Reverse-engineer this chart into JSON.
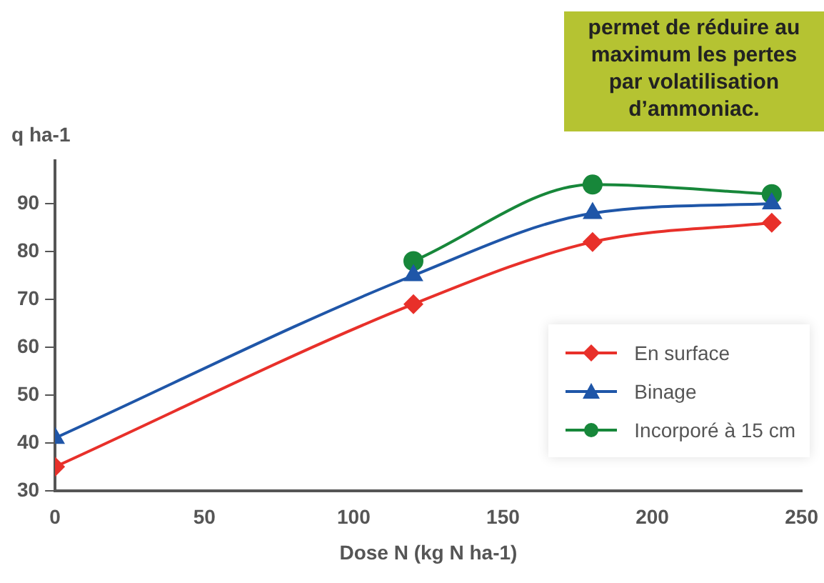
{
  "chart_data": {
    "type": "line",
    "xlabel": "Dose N (kg N ha-1)",
    "ylabel": "q ha-1",
    "annotations": [
      "permet de réduire au maximum les pertes par volatilisation d’ammoniac."
    ],
    "series": [
      {
        "name": "En surface",
        "color": "#e8302a",
        "marker": "diamond",
        "x": [
          0,
          120,
          180,
          240
        ],
        "values": [
          35,
          69,
          82,
          86
        ]
      },
      {
        "name": "Binage",
        "color": "#1f56a8",
        "marker": "triangle",
        "x": [
          0,
          120,
          180,
          240
        ],
        "values": [
          41,
          75,
          88,
          90
        ]
      },
      {
        "name": "Incorporé à 15 cm",
        "color": "#17873a",
        "marker": "circle",
        "x": [
          120,
          180,
          240
        ],
        "values": [
          78,
          94,
          92
        ]
      }
    ],
    "xlim": [
      0,
      250
    ],
    "xticks": [
      0,
      50,
      100,
      150,
      200,
      250
    ],
    "ylim": [
      30,
      99
    ],
    "yticks": [
      30,
      40,
      50,
      60,
      70,
      80,
      90
    ],
    "grid": false,
    "legend": "bottom right",
    "line_style": "solid"
  }
}
